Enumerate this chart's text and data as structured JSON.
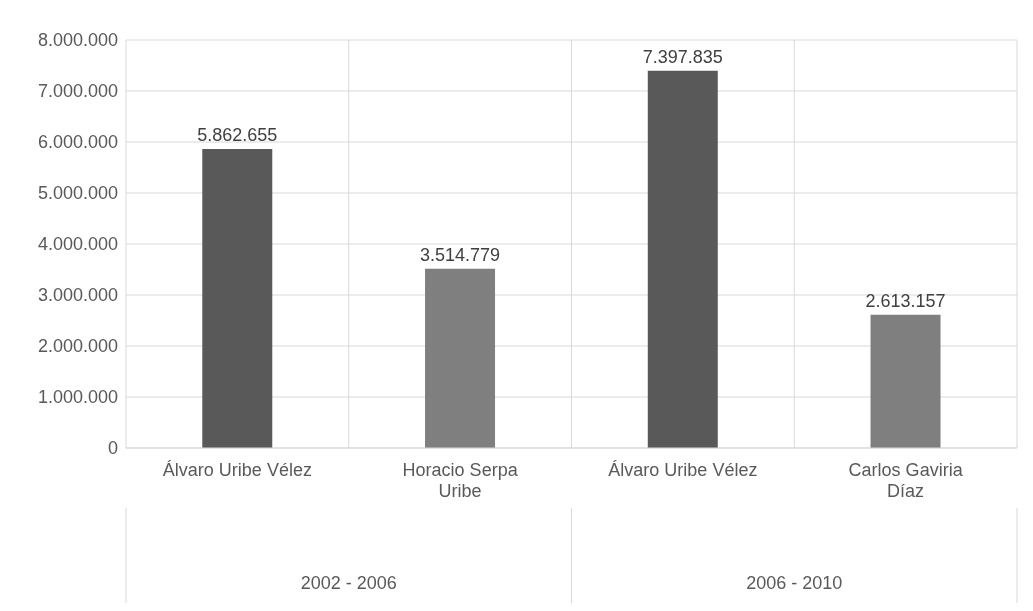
{
  "chart_data": {
    "type": "bar",
    "categories": [
      "Álvaro Uribe Vélez",
      "Horacio Serpa Uribe",
      "Álvaro Uribe Vélez",
      "Carlos Gaviria Díaz"
    ],
    "values": [
      5862655,
      3514779,
      7397835,
      2613157
    ],
    "colors": [
      "#595959",
      "#7f7f7f",
      "#595959",
      "#7f7f7f"
    ],
    "value_labels": [
      "5.862.655",
      "3.514.779",
      "7.397.835",
      "2.613.157"
    ],
    "annotations": [
      "2002 - 2006",
      "2006 - 2010"
    ],
    "ylim": [
      0,
      8000000
    ],
    "yticks": [
      {
        "value": 0,
        "label": "0"
      },
      {
        "value": 1000000,
        "label": "1.000.000"
      },
      {
        "value": 2000000,
        "label": "2.000.000"
      },
      {
        "value": 3000000,
        "label": "3.000.000"
      },
      {
        "value": 4000000,
        "label": "4.000.000"
      },
      {
        "value": 5000000,
        "label": "5.000.000"
      },
      {
        "value": 6000000,
        "label": "6.000.000"
      },
      {
        "value": 7000000,
        "label": "7.000.000"
      },
      {
        "value": 8000000,
        "label": "8.000.000"
      }
    ],
    "grid": true
  }
}
